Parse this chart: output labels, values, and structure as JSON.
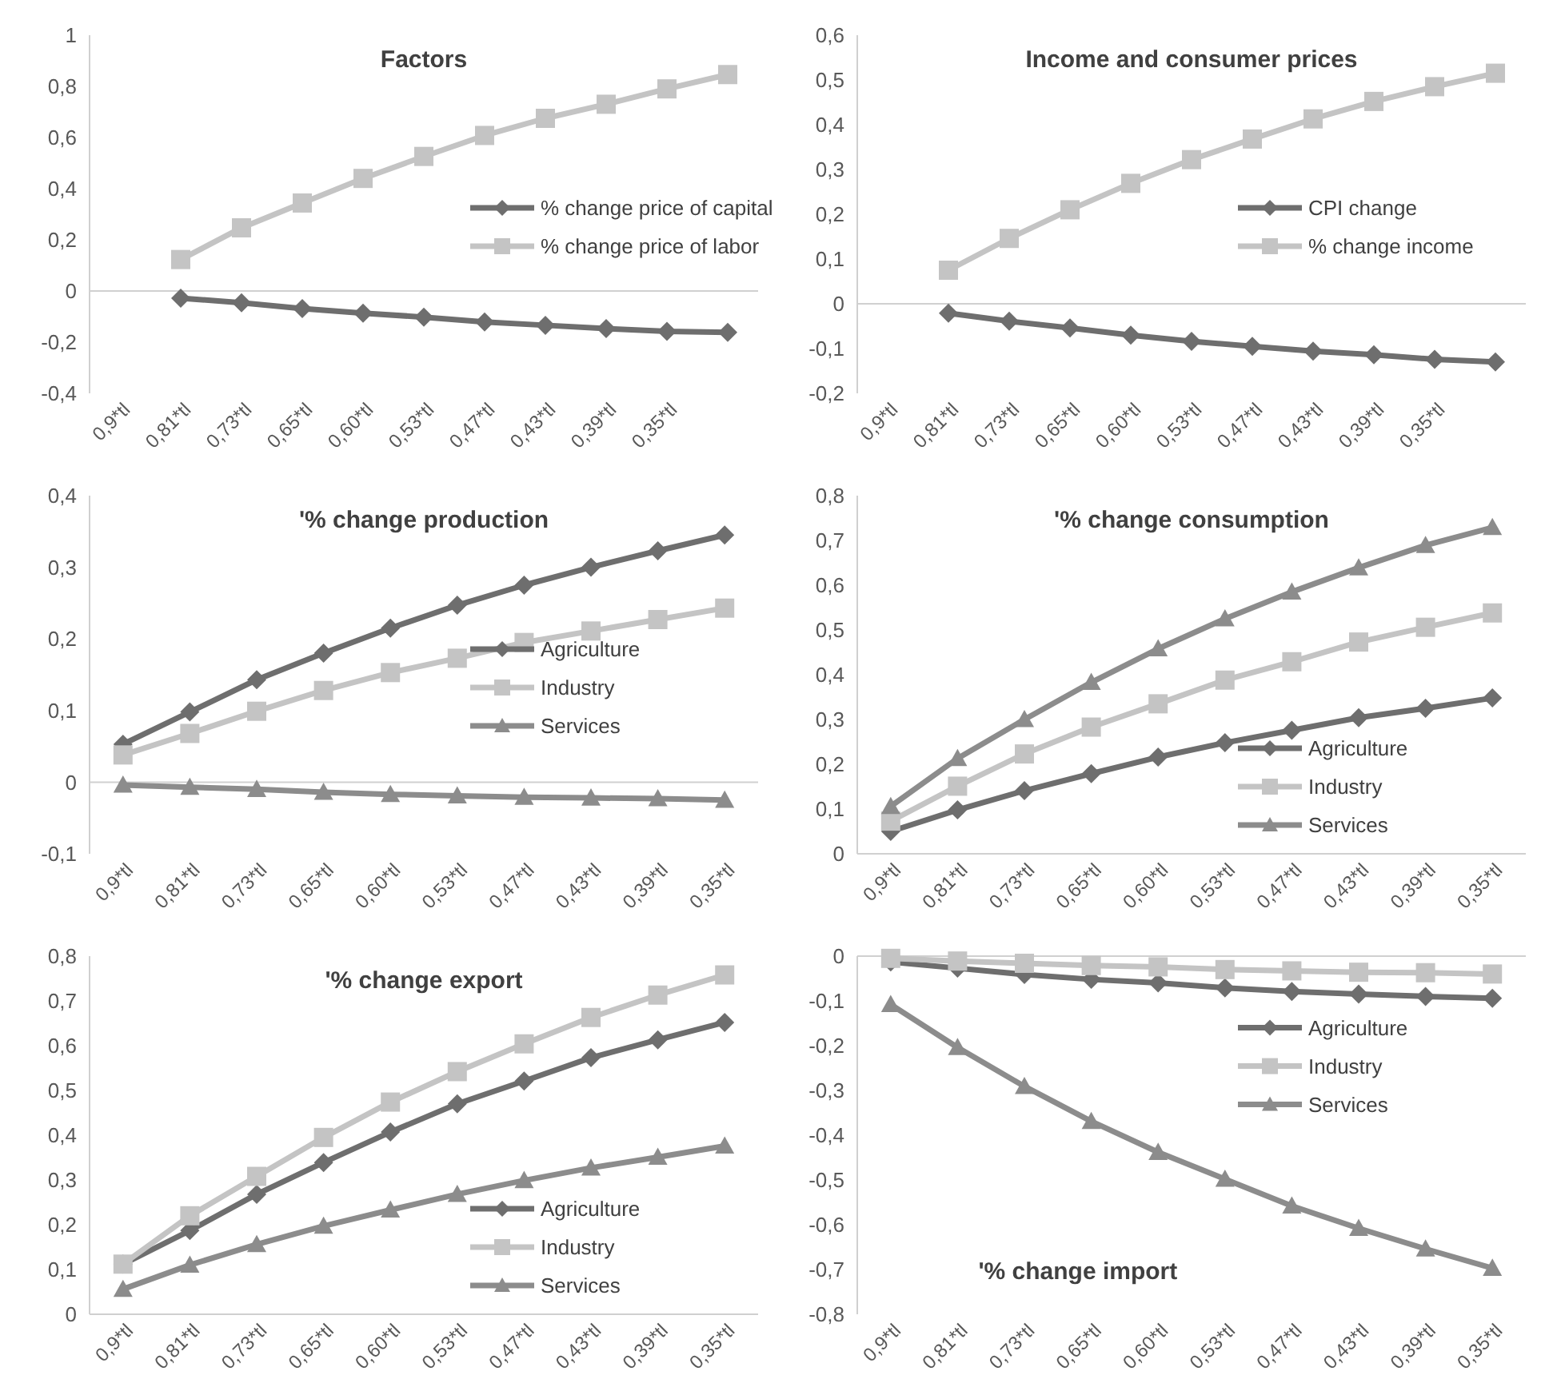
{
  "chart_data": [
    {
      "type": "line",
      "title": "Factors",
      "categories": [
        "0,9*tl",
        "0,81*tl",
        "0,73*tl",
        "0,65*tl",
        "0,60*tl",
        "0,53*tl",
        "0,47*tl",
        "0,43*tl",
        "0,39*tl",
        "0,35*tl",
        null
      ],
      "ylim": [
        -0.4,
        1
      ],
      "yticks": [
        {
          "value": -0.4,
          "label": "-0,4"
        },
        {
          "value": -0.2,
          "label": "-0,2"
        },
        {
          "value": 0,
          "label": "0"
        },
        {
          "value": 0.2,
          "label": "0,2"
        },
        {
          "value": 0.4,
          "label": "0,4"
        },
        {
          "value": 0.6,
          "label": "0,6"
        },
        {
          "value": 0.8,
          "label": "0,8"
        },
        {
          "value": 1,
          "label": "1"
        }
      ],
      "legend": "right",
      "line_style": "solid",
      "series": [
        {
          "name": "% change price of capital",
          "color": "#6e6e6e",
          "marker": "diamond",
          "values": [
            null,
            -0.028,
            -0.046,
            -0.069,
            -0.087,
            -0.102,
            -0.121,
            -0.134,
            -0.147,
            -0.158,
            -0.162
          ]
        },
        {
          "name": "% change price of labor",
          "color": "#c4c4c4",
          "marker": "square",
          "values": [
            null,
            0.123,
            0.247,
            0.344,
            0.44,
            0.526,
            0.608,
            0.675,
            0.73,
            0.79,
            0.846
          ]
        }
      ]
    },
    {
      "type": "line",
      "title": "Income and consumer prices",
      "categories": [
        "0,9*tl",
        "0,81*tl",
        "0,73*tl",
        "0,65*tl",
        "0,60*tl",
        "0,53*tl",
        "0,47*tl",
        "0,43*tl",
        "0,39*tl",
        "0,35*tl",
        null
      ],
      "ylim": [
        -0.2,
        0.6
      ],
      "yticks": [
        {
          "value": -0.2,
          "label": "-0,2"
        },
        {
          "value": -0.1,
          "label": "-0,1"
        },
        {
          "value": 0,
          "label": "0"
        },
        {
          "value": 0.1,
          "label": "0,1"
        },
        {
          "value": 0.2,
          "label": "0,2"
        },
        {
          "value": 0.3,
          "label": "0,3"
        },
        {
          "value": 0.4,
          "label": "0,4"
        },
        {
          "value": 0.5,
          "label": "0,5"
        },
        {
          "value": 0.6,
          "label": "0,6"
        }
      ],
      "legend": "right",
      "line_style": "solid",
      "series": [
        {
          "name": "CPI change",
          "color": "#6e6e6e",
          "marker": "diamond",
          "values": [
            null,
            -0.021,
            -0.039,
            -0.054,
            -0.07,
            -0.084,
            -0.095,
            -0.106,
            -0.114,
            -0.124,
            -0.13
          ]
        },
        {
          "name": "% change income",
          "color": "#c4c4c4",
          "marker": "square",
          "values": [
            null,
            0.075,
            0.146,
            0.21,
            0.269,
            0.322,
            0.368,
            0.413,
            0.452,
            0.485,
            0.515
          ]
        }
      ]
    },
    {
      "type": "line",
      "title": "'% change production",
      "categories": [
        "0,9*tl",
        "0,81*tl",
        "0,73*tl",
        "0,65*tl",
        "0,60*tl",
        "0,53*tl",
        "0,47*tl",
        "0,43*tl",
        "0,39*tl",
        "0,35*tl"
      ],
      "ylim": [
        -0.1,
        0.4
      ],
      "yticks": [
        {
          "value": -0.1,
          "label": "-0,1"
        },
        {
          "value": 0,
          "label": "0"
        },
        {
          "value": 0.1,
          "label": "0,1"
        },
        {
          "value": 0.2,
          "label": "0,2"
        },
        {
          "value": 0.3,
          "label": "0,3"
        },
        {
          "value": 0.4,
          "label": "0,4"
        }
      ],
      "legend": "right",
      "line_style": "solid",
      "series": [
        {
          "name": "Agriculture",
          "color": "#6e6e6e",
          "marker": "diamond",
          "values": [
            0.053,
            0.098,
            0.143,
            0.18,
            0.215,
            0.247,
            0.275,
            0.3,
            0.323,
            0.345
          ]
        },
        {
          "name": "Industry",
          "color": "#c4c4c4",
          "marker": "square",
          "values": [
            0.038,
            0.068,
            0.099,
            0.128,
            0.153,
            0.173,
            0.195,
            0.211,
            0.227,
            0.243
          ]
        },
        {
          "name": "Services",
          "color": "#8c8c8c",
          "marker": "triangle",
          "values": [
            -0.004,
            -0.007,
            -0.01,
            -0.014,
            -0.017,
            -0.019,
            -0.021,
            -0.022,
            -0.023,
            -0.025
          ]
        }
      ]
    },
    {
      "type": "line",
      "title": "'% change consumption",
      "categories": [
        "0,9*tl",
        "0,81*tl",
        "0,73*tl",
        "0,65*tl",
        "0,60*tl",
        "0,53*tl",
        "0,47*tl",
        "0,43*tl",
        "0,39*tl",
        "0,35*tl"
      ],
      "ylim": [
        0,
        0.8
      ],
      "yticks": [
        {
          "value": 0,
          "label": "0"
        },
        {
          "value": 0.1,
          "label": "0,1"
        },
        {
          "value": 0.2,
          "label": "0,2"
        },
        {
          "value": 0.3,
          "label": "0,3"
        },
        {
          "value": 0.4,
          "label": "0,4"
        },
        {
          "value": 0.5,
          "label": "0,5"
        },
        {
          "value": 0.6,
          "label": "0,6"
        },
        {
          "value": 0.7,
          "label": "0,7"
        },
        {
          "value": 0.8,
          "label": "0,8"
        }
      ],
      "legend": "bottom right",
      "line_style": "solid",
      "series": [
        {
          "name": "Agriculture",
          "color": "#6e6e6e",
          "marker": "diamond",
          "values": [
            0.05,
            0.098,
            0.141,
            0.179,
            0.216,
            0.248,
            0.276,
            0.304,
            0.325,
            0.348
          ]
        },
        {
          "name": "Industry",
          "color": "#c4c4c4",
          "marker": "square",
          "values": [
            0.073,
            0.151,
            0.223,
            0.283,
            0.335,
            0.388,
            0.429,
            0.473,
            0.506,
            0.538
          ]
        },
        {
          "name": "Services",
          "color": "#8c8c8c",
          "marker": "triangle",
          "values": [
            0.106,
            0.213,
            0.3,
            0.383,
            0.458,
            0.525,
            0.585,
            0.639,
            0.689,
            0.729
          ]
        }
      ]
    },
    {
      "type": "line",
      "title": "'% change export",
      "categories": [
        "0,9*tl",
        "0,81*tl",
        "0,73*tl",
        "0,65*tl",
        "0,60*tl",
        "0,53*tl",
        "0,47*tl",
        "0,43*tl",
        "0,39*tl",
        "0,35*tl"
      ],
      "ylim": [
        0,
        0.8
      ],
      "yticks": [
        {
          "value": 0,
          "label": "0"
        },
        {
          "value": 0.1,
          "label": "0,1"
        },
        {
          "value": 0.2,
          "label": "0,2"
        },
        {
          "value": 0.3,
          "label": "0,3"
        },
        {
          "value": 0.4,
          "label": "0,4"
        },
        {
          "value": 0.5,
          "label": "0,5"
        },
        {
          "value": 0.6,
          "label": "0,6"
        },
        {
          "value": 0.7,
          "label": "0,7"
        },
        {
          "value": 0.8,
          "label": "0,8"
        }
      ],
      "legend": "bottom right",
      "line_style": "solid",
      "series": [
        {
          "name": "Agriculture",
          "color": "#6e6e6e",
          "marker": "diamond",
          "values": [
            0.112,
            0.187,
            0.268,
            0.339,
            0.407,
            0.47,
            0.521,
            0.573,
            0.613,
            0.652
          ]
        },
        {
          "name": "Industry",
          "color": "#c4c4c4",
          "marker": "square",
          "values": [
            0.112,
            0.22,
            0.308,
            0.395,
            0.474,
            0.542,
            0.604,
            0.663,
            0.713,
            0.758
          ]
        },
        {
          "name": "Services",
          "color": "#8c8c8c",
          "marker": "triangle",
          "values": [
            0.056,
            0.11,
            0.156,
            0.197,
            0.233,
            0.268,
            0.299,
            0.327,
            0.351,
            0.376
          ]
        }
      ]
    },
    {
      "type": "line",
      "title": "'% change import",
      "categories": [
        "0,9*tl",
        "0,81*tl",
        "0,73*tl",
        "0,65*tl",
        "0,60*tl",
        "0,53*tl",
        "0,47*tl",
        "0,43*tl",
        "0,39*tl",
        "0,35*tl"
      ],
      "ylim": [
        -0.8,
        0
      ],
      "yticks": [
        {
          "value": -0.8,
          "label": "-0,8"
        },
        {
          "value": -0.7,
          "label": "-0,7"
        },
        {
          "value": -0.6,
          "label": "-0,6"
        },
        {
          "value": -0.5,
          "label": "-0,5"
        },
        {
          "value": -0.4,
          "label": "-0,4"
        },
        {
          "value": -0.3,
          "label": "-0,3"
        },
        {
          "value": -0.2,
          "label": "-0,2"
        },
        {
          "value": -0.1,
          "label": "-0,1"
        },
        {
          "value": 0,
          "label": "0"
        }
      ],
      "legend": "top right",
      "line_style": "solid",
      "series": [
        {
          "name": "Agriculture",
          "color": "#6e6e6e",
          "marker": "diamond",
          "values": [
            -0.013,
            -0.027,
            -0.041,
            -0.052,
            -0.06,
            -0.071,
            -0.079,
            -0.085,
            -0.09,
            -0.094
          ]
        },
        {
          "name": "Industry",
          "color": "#c4c4c4",
          "marker": "square",
          "values": [
            -0.005,
            -0.011,
            -0.016,
            -0.021,
            -0.024,
            -0.03,
            -0.033,
            -0.036,
            -0.037,
            -0.04
          ]
        },
        {
          "name": "Services",
          "color": "#8c8c8c",
          "marker": "triangle",
          "values": [
            -0.108,
            -0.204,
            -0.291,
            -0.369,
            -0.438,
            -0.498,
            -0.558,
            -0.608,
            -0.654,
            -0.697
          ]
        }
      ]
    }
  ]
}
